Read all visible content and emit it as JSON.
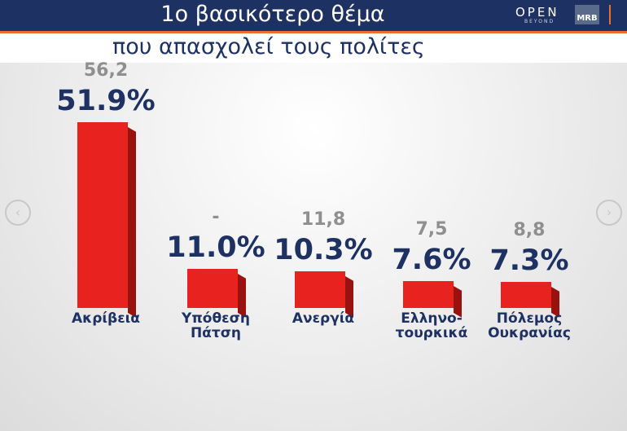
{
  "chart_data": {
    "type": "bar",
    "title": "1ο βασικότερο θέμα",
    "subtitle": "που απασχολεί τους πολίτες",
    "brand": [
      "OPEN",
      "BEYOND",
      "MRB"
    ],
    "categories": [
      "Ακρίβεια",
      "Υπόθεση\nΠάτση",
      "Ανεργία",
      "Ελληνο-\nτουρκικά",
      "Πόλεμος\nΟυκρανίας"
    ],
    "series": [
      {
        "color": "#e8231f",
        "values": [
          51.9,
          11.0,
          10.3,
          7.6,
          7.3
        ],
        "value_labels": [
          "51.9%",
          "11.0%",
          "10.3%",
          "7.6%",
          "7.3%"
        ]
      },
      {
        "color": "#8f8f8f",
        "values": [
          56.2,
          null,
          11.8,
          7.5,
          8.8
        ],
        "value_labels": [
          "56,2",
          "-",
          "11,8",
          "7,5",
          "8,8"
        ]
      }
    ]
  }
}
